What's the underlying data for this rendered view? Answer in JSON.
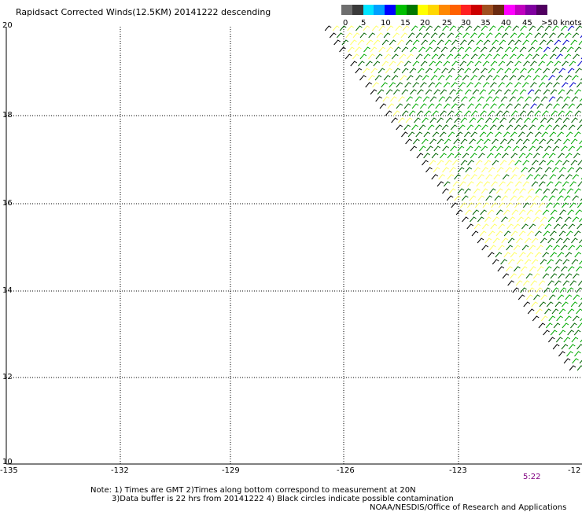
{
  "title": "Rapidsact Corrected Winds(12.5KM) 20141222 descending",
  "legend": {
    "colors": [
      "#6e6e6e",
      "#3a3a3a",
      "#00e5ff",
      "#00a0ff",
      "#0000ff",
      "#00c000",
      "#007800",
      "#ffff00",
      "#ffd700",
      "#ff8800",
      "#ff6000",
      "#ff2020",
      "#cc0000",
      "#a05020",
      "#6a2a10",
      "#ff00ff",
      "#c000c0",
      "#8000a0",
      "#500060"
    ],
    "labels": [
      "0",
      "5",
      "10",
      "15",
      "20",
      "25",
      "30",
      "35",
      "40",
      "45",
      ">50 knots"
    ]
  },
  "y_labels": [
    "20",
    "18",
    "16",
    "14",
    "12",
    "10"
  ],
  "x_labels": [
    "-135",
    "-132",
    "-129",
    "-126",
    "-123",
    "-12"
  ],
  "time_label": "5:22",
  "notes": {
    "line1": "Note: 1) Times are GMT 2)Times along bottom correspond to measurement at 20N",
    "line2": "3)Data buffer is 22 hrs from 20141222 4) Black circles indicate possible contamination",
    "line3": "NOAA/NESDIS/Office of Research and Applications"
  },
  "wind_colors": {
    "light": "#ffff66",
    "medium": "#00aa00",
    "dark": "#006400",
    "strong": "#0000cc",
    "edge": "#000000"
  }
}
